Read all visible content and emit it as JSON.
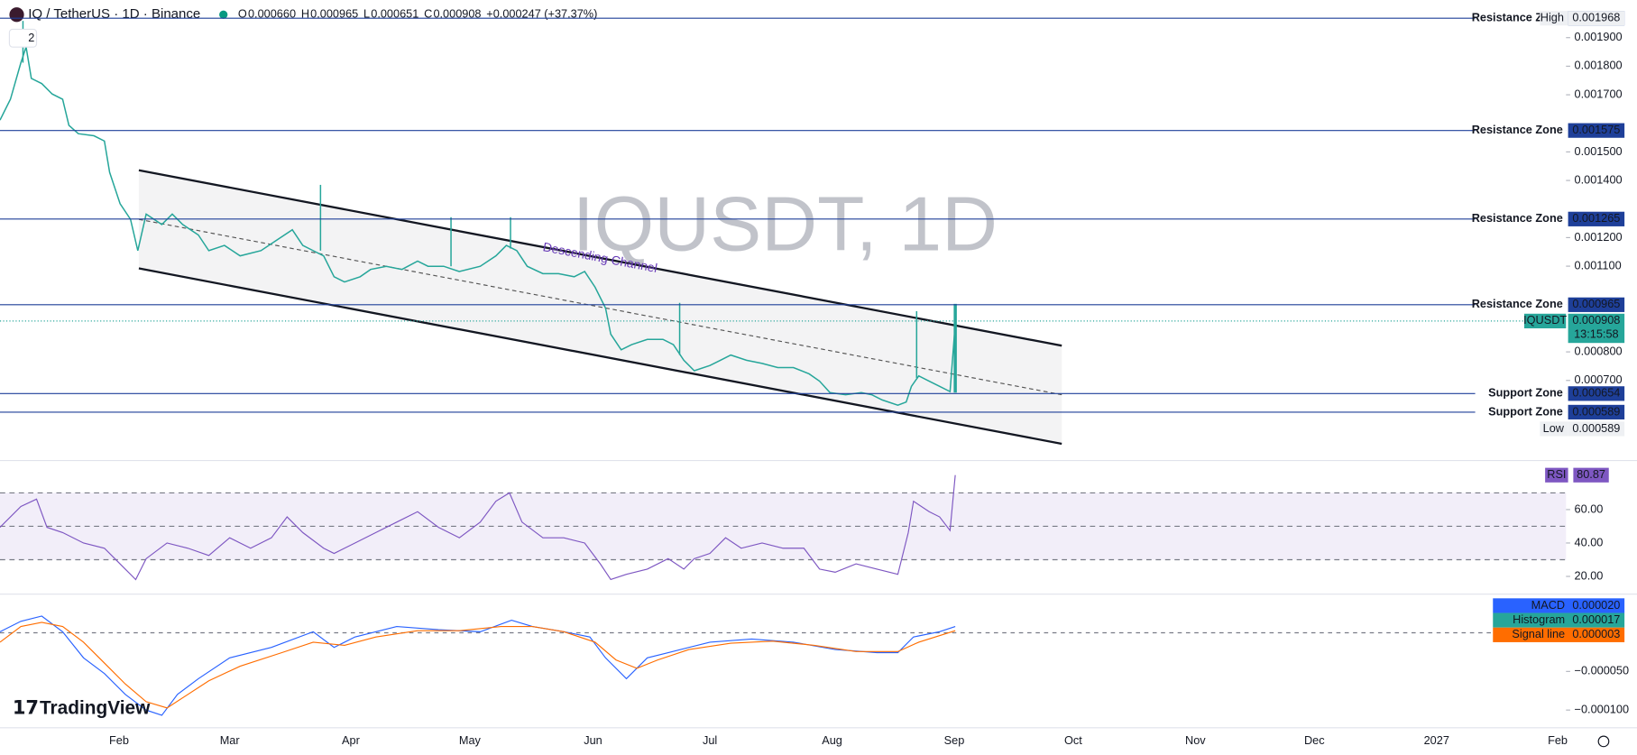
{
  "header": {
    "symbol": "IQ / TetherUS · 1D · Binance",
    "ohlc": [
      {
        "key": "O",
        "value": "0.000660"
      },
      {
        "key": "H",
        "value": "0.000965"
      },
      {
        "key": "L",
        "value": "0.000651"
      },
      {
        "key": "C",
        "value": "0.000908"
      }
    ],
    "change": "+0.000247 (+37.37%)",
    "indicators_count": "2"
  },
  "watermark": "IQUSDT, 1D",
  "annotation": "Descending Channel",
  "price_axis": {
    "ticks": [
      {
        "value": 0.0019,
        "label": "0.001900"
      },
      {
        "value": 0.0018,
        "label": "0.001800"
      },
      {
        "value": 0.0017,
        "label": "0.001700"
      },
      {
        "value": 0.0015,
        "label": "0.001500"
      },
      {
        "value": 0.0014,
        "label": "0.001400"
      },
      {
        "value": 0.0012,
        "label": "0.001200"
      },
      {
        "value": 0.0011,
        "label": "0.001100"
      },
      {
        "value": 0.0008,
        "label": "0.000800"
      },
      {
        "value": 0.0007,
        "label": "0.000700"
      }
    ]
  },
  "levels": [
    {
      "name": "Resistance Zone",
      "value": 0.001968
    },
    {
      "name": "Resistance Zone",
      "value": 0.001575
    },
    {
      "name": "Resistance Zone",
      "value": 0.001265
    },
    {
      "name": "Resistance Zone",
      "value": 0.000965
    },
    {
      "name": "Support Zone",
      "value": 0.000654
    },
    {
      "name": "Support Zone",
      "value": 0.000589
    }
  ],
  "high": {
    "name": "High",
    "value": 0.001968
  },
  "low": {
    "name": "Low",
    "value": 0.000589
  },
  "last_price": {
    "name": "IQUSDT",
    "value": 0.000908,
    "countdown": "13:15:58"
  },
  "rsi": {
    "name": "RSI",
    "value": "80.87",
    "ticks": [
      {
        "value": 60,
        "label": "60.00"
      },
      {
        "value": 40,
        "label": "40.00"
      },
      {
        "value": 20,
        "label": "20.00"
      }
    ]
  },
  "macd": {
    "legend": [
      {
        "name": "MACD",
        "value": "0.000020",
        "color": "#2962ff"
      },
      {
        "name": "Histogram",
        "value": "0.000017",
        "color": "#26a69a"
      },
      {
        "name": "Signal line",
        "value": "0.000003",
        "color": "#ff6d00"
      }
    ],
    "ticks": [
      {
        "value": -5e-05,
        "label": "−0.000050"
      },
      {
        "value": -0.0001,
        "label": "−0.000100"
      }
    ]
  },
  "time_axis": [
    "Feb",
    "Mar",
    "Apr",
    "May",
    "Jun",
    "Jul",
    "Aug",
    "Sep",
    "Oct",
    "Nov",
    "Dec",
    "2027",
    "Feb"
  ],
  "brand": "TradingView"
}
